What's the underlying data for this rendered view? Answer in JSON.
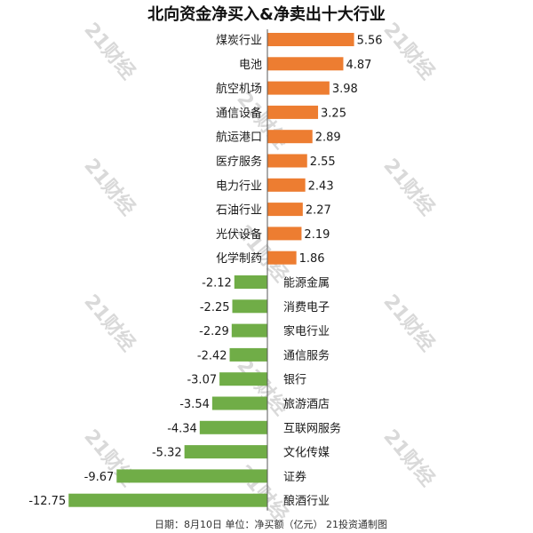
{
  "chart_data": {
    "type": "bar",
    "orientation": "horizontal",
    "title": "北向资金净买入&净卖出十大行业",
    "categories": [
      "煤炭行业",
      "电池",
      "航空机场",
      "通信设备",
      "航运港口",
      "医疗服务",
      "电力行业",
      "石油行业",
      "光伏设备",
      "化学制药",
      "能源金属",
      "消费电子",
      "家电行业",
      "通信服务",
      "银行",
      "旅游酒店",
      "互联网服务",
      "文化传媒",
      "证券",
      "酿酒行业"
    ],
    "values": [
      5.56,
      4.87,
      3.98,
      3.25,
      2.89,
      2.55,
      2.43,
      2.27,
      2.19,
      1.86,
      -2.12,
      -2.25,
      -2.29,
      -2.42,
      -3.07,
      -3.54,
      -4.34,
      -5.32,
      -9.67,
      -12.75
    ],
    "value_labels": [
      "5.56",
      "4.87",
      "3.98",
      "3.25",
      "2.89",
      "2.55",
      "2.43",
      "2.27",
      "2.19",
      "1.86",
      "-2.12",
      "-2.25",
      "-2.29",
      "-2.42",
      "-3.07",
      "-3.54",
      "-4.34",
      "-5.32",
      "-9.67",
      "-12.75"
    ],
    "xlim": [
      -12.75,
      5.56
    ],
    "grid": false,
    "legend": "none",
    "colors": {
      "positive": "#ED7D31",
      "negative": "#70AD47",
      "axis": "#595959",
      "text": "#1a1a1a"
    },
    "footnote": "日期：8月10日 单位：净买额（亿元） 21投资通制图",
    "watermark": "21财经"
  }
}
